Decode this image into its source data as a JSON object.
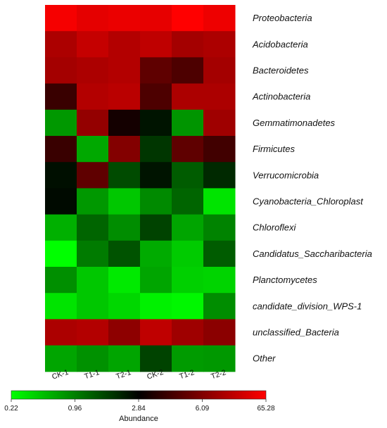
{
  "chart_data": {
    "type": "heatmap",
    "columns": [
      "CK-1",
      "T1-1",
      "T2-1",
      "CK-2",
      "T1-2",
      "T2-2"
    ],
    "rows": [
      "Proteobacteria",
      "Acidobacteria",
      "Bacteroidetes",
      "Actinobacteria",
      "Gemmatimonadetes",
      "Firmicutes",
      "Verrucomicrobia",
      "Cyanobacteria_Chloroplast",
      "Chloroflexi",
      "Candidatus_Saccharibacteria",
      "Planctomycetes",
      "candidate_division_WPS-1",
      "unclassified_Bacteria",
      "Other"
    ],
    "values": [
      [
        55.0,
        40.0,
        45.0,
        42.0,
        65.28,
        48.0
      ],
      [
        14.0,
        22.0,
        16.0,
        20.0,
        12.0,
        14.0
      ],
      [
        12.0,
        14.0,
        16.0,
        5.0,
        4.5,
        12.0
      ],
      [
        4.0,
        16.0,
        18.0,
        4.5,
        14.0,
        14.0
      ],
      [
        0.72,
        9.0,
        3.2,
        2.4,
        0.75,
        11.0
      ],
      [
        4.0,
        0.6,
        6.5,
        1.8,
        5.0,
        4.2
      ],
      [
        2.5,
        5.0,
        1.5,
        2.4,
        1.3,
        2.0
      ],
      [
        2.6,
        0.72,
        0.42,
        0.85,
        1.2,
        0.3
      ],
      [
        0.55,
        1.2,
        0.82,
        1.6,
        0.62,
        0.92
      ],
      [
        0.22,
        1.0,
        1.4,
        0.58,
        0.4,
        1.3
      ],
      [
        0.8,
        0.42,
        0.28,
        0.62,
        0.38,
        0.36
      ],
      [
        0.3,
        0.42,
        0.35,
        0.26,
        0.24,
        0.82
      ],
      [
        14.0,
        16.0,
        8.0,
        20.0,
        11.0,
        7.5
      ],
      [
        0.62,
        0.78,
        0.62,
        1.6,
        0.7,
        0.72
      ]
    ],
    "color_scale": {
      "title": "Abundance",
      "ticks": [
        0.22,
        0.96,
        2.84,
        6.09,
        65.28
      ],
      "min": 0.22,
      "max": 65.28,
      "low_color": "#00ff00",
      "mid_color": "#000000",
      "high_color": "#ff0000"
    },
    "legend_placement": "bottom"
  }
}
